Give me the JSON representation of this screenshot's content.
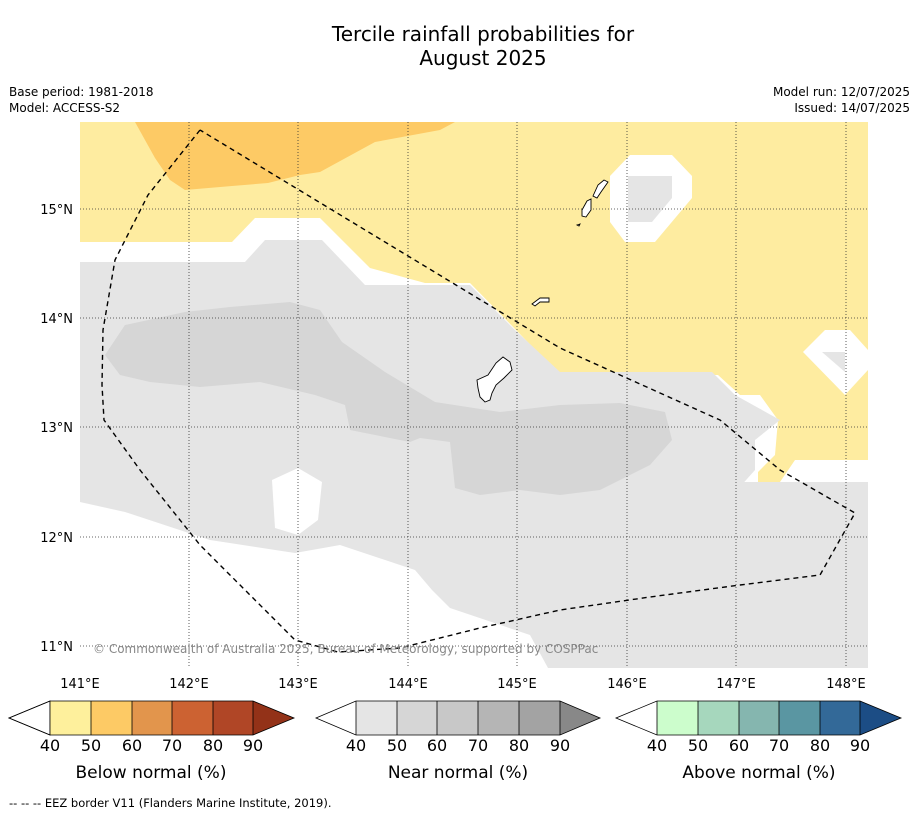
{
  "title_line1": "Tercile rainfall probabilities for",
  "title_line2": "August 2025",
  "base_period": "Base period: 1981-2018",
  "model": "Model: ACCESS-S2",
  "model_run": "Model run: 12/07/2025",
  "issued": "Issued: 14/07/2025",
  "copyright": "© Commonwealth of Australia 2025, Bureau of Meteorology, supported by COSPPac",
  "footnote": "--  --  -- EEZ border V11 (Flanders Marine Institute, 2019).",
  "map": {
    "lon_ticks": [
      "141°E",
      "142°E",
      "143°E",
      "144°E",
      "145°E",
      "146°E",
      "147°E",
      "148°E"
    ],
    "lat_ticks": [
      "15°N",
      "14°N",
      "13°N",
      "12°N",
      "11°N"
    ],
    "lon_range": [
      141.0,
      148.2
    ],
    "lat_range": [
      10.8,
      15.8
    ],
    "colors": {
      "white": "#ffffff",
      "below_40": "#feeca0",
      "below_50": "#fdca65",
      "near_40": "#e5e5e5",
      "near_50": "#d6d6d6"
    }
  },
  "legends": [
    {
      "label": "Below normal (%)",
      "ticks": [
        "40",
        "50",
        "60",
        "70",
        "80",
        "90"
      ],
      "colors": [
        "#fef09c",
        "#fdca65",
        "#e2954c",
        "#cc6232",
        "#b04626",
        "#933218"
      ]
    },
    {
      "label": "Near normal (%)",
      "ticks": [
        "40",
        "50",
        "60",
        "70",
        "80",
        "90"
      ],
      "colors": [
        "#e5e5e5",
        "#d6d6d6",
        "#c8c8c8",
        "#b5b5b5",
        "#a3a3a3",
        "#888888"
      ]
    },
    {
      "label": "Above normal (%)",
      "ticks": [
        "40",
        "50",
        "60",
        "70",
        "80",
        "90"
      ],
      "colors": [
        "#ccfdcc",
        "#a6d7bd",
        "#85b6af",
        "#5a96a2",
        "#336998",
        "#1c4d85"
      ]
    }
  ]
}
